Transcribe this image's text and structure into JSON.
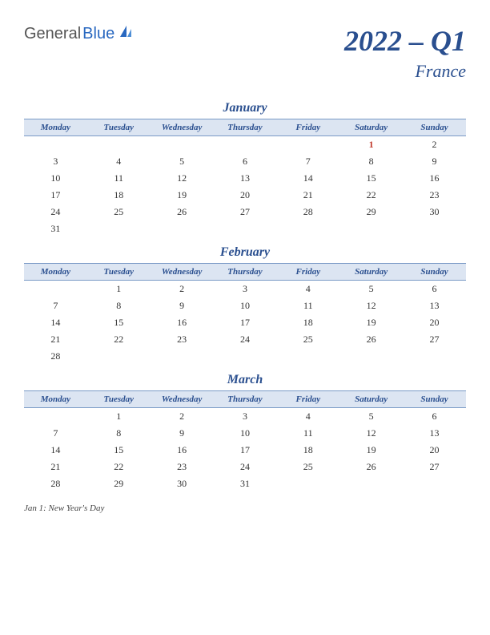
{
  "logo": {
    "part1": "General",
    "part2": "Blue"
  },
  "header": {
    "title": "2022 – Q1",
    "country": "France"
  },
  "day_headers": [
    "Monday",
    "Tuesday",
    "Wednesday",
    "Thursday",
    "Friday",
    "Saturday",
    "Sunday"
  ],
  "colors": {
    "header_bg": "#dce5f2",
    "header_border": "#7a9ac6",
    "accent": "#2a4f8f",
    "holiday": "#c0392b",
    "text": "#333333",
    "background": "#ffffff"
  },
  "typography": {
    "title_fontsize": 36,
    "country_fontsize": 22,
    "month_fontsize": 16,
    "dayheader_fontsize": 11,
    "cell_fontsize": 12,
    "notes_fontsize": 11
  },
  "months": [
    {
      "name": "January",
      "weeks": [
        [
          "",
          "",
          "",
          "",
          "",
          {
            "d": "1",
            "holiday": true
          },
          "2"
        ],
        [
          "3",
          "4",
          "5",
          "6",
          "7",
          "8",
          "9"
        ],
        [
          "10",
          "11",
          "12",
          "13",
          "14",
          "15",
          "16"
        ],
        [
          "17",
          "18",
          "19",
          "20",
          "21",
          "22",
          "23"
        ],
        [
          "24",
          "25",
          "26",
          "27",
          "28",
          "29",
          "30"
        ],
        [
          "31",
          "",
          "",
          "",
          "",
          "",
          ""
        ]
      ]
    },
    {
      "name": "February",
      "weeks": [
        [
          "",
          "1",
          "2",
          "3",
          "4",
          "5",
          "6"
        ],
        [
          "7",
          "8",
          "9",
          "10",
          "11",
          "12",
          "13"
        ],
        [
          "14",
          "15",
          "16",
          "17",
          "18",
          "19",
          "20"
        ],
        [
          "21",
          "22",
          "23",
          "24",
          "25",
          "26",
          "27"
        ],
        [
          "28",
          "",
          "",
          "",
          "",
          "",
          ""
        ]
      ]
    },
    {
      "name": "March",
      "weeks": [
        [
          "",
          "1",
          "2",
          "3",
          "4",
          "5",
          "6"
        ],
        [
          "7",
          "8",
          "9",
          "10",
          "11",
          "12",
          "13"
        ],
        [
          "14",
          "15",
          "16",
          "17",
          "18",
          "19",
          "20"
        ],
        [
          "21",
          "22",
          "23",
          "24",
          "25",
          "26",
          "27"
        ],
        [
          "28",
          "29",
          "30",
          "31",
          "",
          "",
          ""
        ]
      ]
    }
  ],
  "notes": "Jan 1: New Year's Day"
}
